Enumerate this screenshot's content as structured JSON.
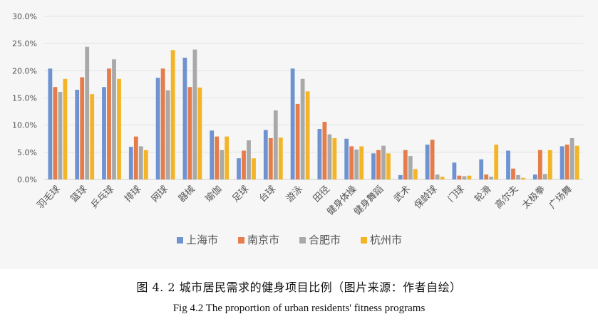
{
  "caption_cn": "图 4. 2    城市居民需求的健身项目比例（图片来源：作者自绘）",
  "caption_en": "Fig 4.2    The proportion of urban residents' fitness programs",
  "chart_data": {
    "type": "bar",
    "title": "",
    "xlabel": "",
    "ylabel": "",
    "ylim": [
      0,
      30
    ],
    "y_ticks": [
      "0.0%",
      "5.0%",
      "10.0%",
      "15.0%",
      "20.0%",
      "25.0%",
      "30.0%"
    ],
    "grid": true,
    "legend_position": "bottom",
    "categories": [
      "羽毛球",
      "篮球",
      "乒乓球",
      "排球",
      "网球",
      "器械",
      "瑜伽",
      "足球",
      "台球",
      "游泳",
      "田径",
      "健身体操",
      "健身舞蹈",
      "武术",
      "保龄球",
      "门球",
      "轮滑",
      "高尔夫",
      "太极拳",
      "广场舞"
    ],
    "series": [
      {
        "name": "上海市",
        "color": "#6f93d1",
        "values": [
          20.4,
          16.5,
          17.0,
          6.0,
          18.7,
          22.4,
          9.0,
          3.9,
          9.1,
          20.4,
          9.3,
          7.5,
          4.8,
          0.8,
          6.4,
          3.1,
          3.7,
          5.3,
          0.9,
          6.1
        ]
      },
      {
        "name": "南京市",
        "color": "#e47c4c",
        "values": [
          17.0,
          18.8,
          20.4,
          7.9,
          20.4,
          17.0,
          7.9,
          5.3,
          7.6,
          13.9,
          10.6,
          6.1,
          5.4,
          5.4,
          7.3,
          0.7,
          0.9,
          2.0,
          5.4,
          6.4
        ]
      },
      {
        "name": "合肥市",
        "color": "#a9a9a9",
        "values": [
          16.1,
          24.4,
          22.1,
          6.1,
          16.4,
          23.9,
          5.4,
          7.2,
          12.7,
          18.5,
          8.3,
          5.5,
          6.2,
          4.3,
          0.9,
          0.6,
          0.5,
          0.8,
          1.0,
          7.6
        ]
      },
      {
        "name": "杭州市",
        "color": "#f3b527",
        "values": [
          18.5,
          15.7,
          18.5,
          5.4,
          23.8,
          16.9,
          7.9,
          3.9,
          7.7,
          16.2,
          7.6,
          6.1,
          4.8,
          1.9,
          0.5,
          0.7,
          6.4,
          0.3,
          5.4,
          6.2
        ]
      }
    ]
  }
}
